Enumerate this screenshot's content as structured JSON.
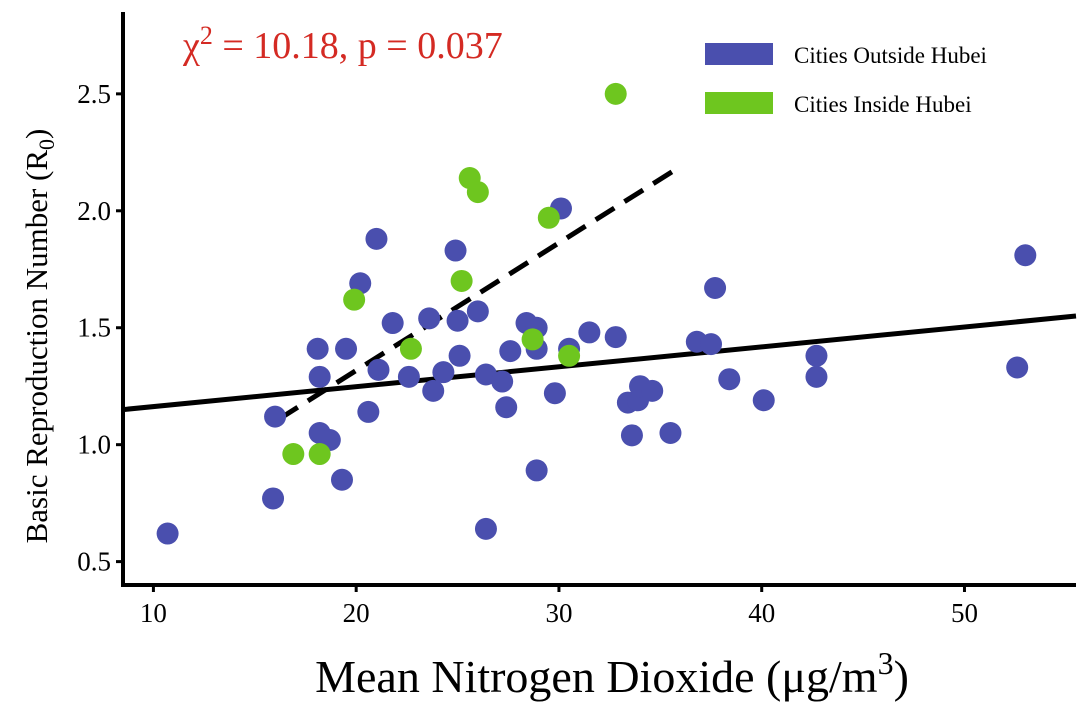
{
  "chart_data": {
    "type": "scatter",
    "xlabel": "Mean Nitrogen Dioxide (μg/m3)",
    "xlabel_main": "Mean Nitrogen Dioxide (μg/m",
    "xlabel_sup": "3",
    "xlabel_close": ")",
    "ylabel_main": "Basic Reproduction Number (R",
    "ylabel_sub": "0",
    "ylabel_close": ")",
    "xlim": [
      8.5,
      55.5
    ],
    "ylim": [
      0.4,
      2.85
    ],
    "xticks": [
      10,
      20,
      30,
      40,
      50
    ],
    "yticks": [
      0.5,
      1.0,
      1.5,
      2.0,
      2.5
    ],
    "xtick_labels": [
      "10",
      "20",
      "30",
      "40",
      "50"
    ],
    "ytick_labels": [
      "0.5",
      "1.0",
      "1.5",
      "2.0",
      "2.5"
    ],
    "annotation": {
      "chi": "χ",
      "sup": "2",
      "rest": " = 10.18, p = 0.037",
      "color": "#d42a23"
    },
    "legend_position": "top-right",
    "series": [
      {
        "name": "Cities Outside Hubei",
        "color": "#4a4fae",
        "points": [
          [
            10.7,
            0.62
          ],
          [
            16.0,
            1.12
          ],
          [
            15.9,
            0.77
          ],
          [
            18.1,
            1.41
          ],
          [
            18.2,
            1.29
          ],
          [
            18.2,
            1.05
          ],
          [
            18.7,
            1.02
          ],
          [
            19.5,
            1.41
          ],
          [
            19.3,
            0.85
          ],
          [
            20.2,
            1.69
          ],
          [
            20.6,
            1.14
          ],
          [
            21.0,
            1.88
          ],
          [
            21.1,
            1.32
          ],
          [
            21.8,
            1.52
          ],
          [
            22.6,
            1.29
          ],
          [
            23.6,
            1.54
          ],
          [
            23.8,
            1.23
          ],
          [
            24.3,
            1.31
          ],
          [
            24.9,
            1.83
          ],
          [
            25.0,
            1.53
          ],
          [
            25.1,
            1.38
          ],
          [
            26.0,
            1.57
          ],
          [
            26.4,
            1.3
          ],
          [
            26.4,
            0.64
          ],
          [
            27.2,
            1.27
          ],
          [
            27.4,
            1.16
          ],
          [
            27.6,
            1.4
          ],
          [
            28.4,
            1.52
          ],
          [
            28.9,
            1.5
          ],
          [
            28.9,
            1.41
          ],
          [
            28.9,
            0.89
          ],
          [
            29.8,
            1.22
          ],
          [
            30.1,
            2.01
          ],
          [
            30.5,
            1.41
          ],
          [
            31.5,
            1.48
          ],
          [
            32.8,
            1.46
          ],
          [
            33.4,
            1.18
          ],
          [
            33.6,
            1.04
          ],
          [
            33.9,
            1.19
          ],
          [
            34.0,
            1.25
          ],
          [
            34.6,
            1.23
          ],
          [
            35.5,
            1.05
          ],
          [
            36.8,
            1.44
          ],
          [
            37.5,
            1.43
          ],
          [
            37.7,
            1.67
          ],
          [
            38.4,
            1.28
          ],
          [
            40.1,
            1.19
          ],
          [
            42.7,
            1.38
          ],
          [
            42.7,
            1.29
          ],
          [
            52.6,
            1.33
          ],
          [
            53.0,
            1.81
          ]
        ]
      },
      {
        "name": "Cities Inside Hubei",
        "color": "#6ec61f",
        "points": [
          [
            16.9,
            0.96
          ],
          [
            18.2,
            0.96
          ],
          [
            19.9,
            1.62
          ],
          [
            22.7,
            1.41
          ],
          [
            25.2,
            1.7
          ],
          [
            25.6,
            2.14
          ],
          [
            26.0,
            2.08
          ],
          [
            28.7,
            1.45
          ],
          [
            29.5,
            1.97
          ],
          [
            30.5,
            1.38
          ],
          [
            32.8,
            2.5
          ]
        ]
      }
    ],
    "fit_lines": [
      {
        "series": "Cities Outside Hubei",
        "style": "solid",
        "x": [
          8.5,
          55.5
        ],
        "y": [
          1.15,
          1.55
        ]
      },
      {
        "series": "Cities Inside Hubei",
        "style": "dashed",
        "x": [
          16.2,
          36.0
        ],
        "y": [
          1.11,
          2.19
        ]
      }
    ]
  }
}
